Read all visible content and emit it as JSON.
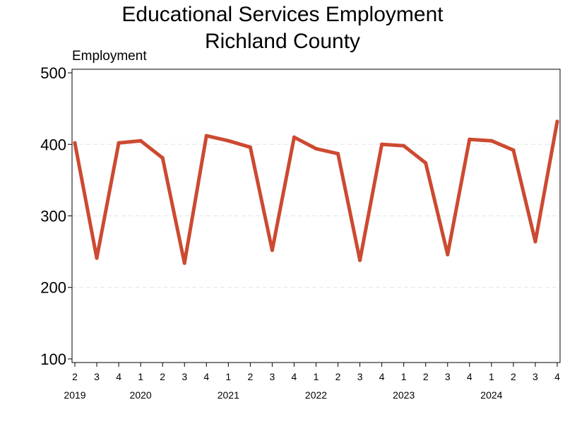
{
  "chart_data": {
    "type": "line",
    "title": "Educational Services Employment",
    "subtitle": "Richland County",
    "ylabel": "Employment",
    "xlabel": "",
    "ylim": [
      95,
      505
    ],
    "yticks": [
      100,
      200,
      300,
      400,
      500
    ],
    "grid": "y-dashed",
    "line_color": "#cc4a31",
    "grid_color": "#e3e3e3",
    "x": [
      "2",
      "3",
      "4",
      "1",
      "2",
      "3",
      "4",
      "1",
      "2",
      "3",
      "4",
      "1",
      "2",
      "3",
      "4",
      "1",
      "2",
      "3",
      "4",
      "1",
      "2",
      "3",
      "4"
    ],
    "years": [
      {
        "label": "2019",
        "at_index": 0
      },
      {
        "label": "2020",
        "at_index": 3
      },
      {
        "label": "2021",
        "at_index": 7
      },
      {
        "label": "2022",
        "at_index": 11
      },
      {
        "label": "2023",
        "at_index": 15
      },
      {
        "label": "2024",
        "at_index": 19
      }
    ],
    "series": [
      {
        "values": [
          402,
          241,
          402,
          405,
          381,
          234,
          412,
          405,
          396,
          252,
          410,
          394,
          387,
          238,
          400,
          398,
          374,
          246,
          407,
          405,
          392,
          264,
          432
        ]
      }
    ]
  }
}
